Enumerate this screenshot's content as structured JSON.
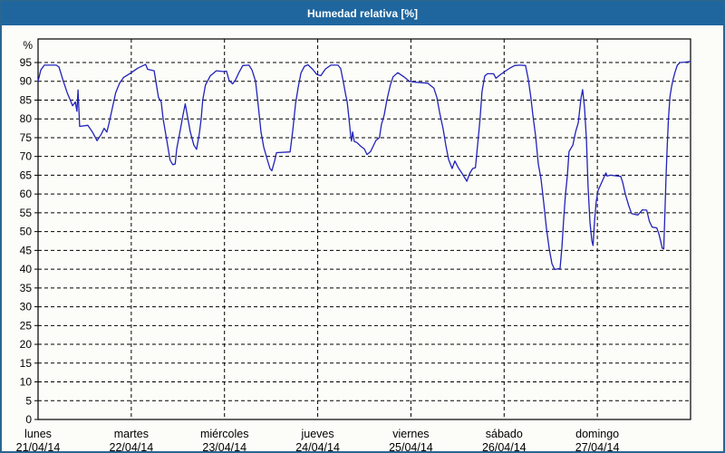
{
  "window": {
    "title": "Humedad relativa [%]"
  },
  "colors": {
    "titlebar_bg": "#1f669e",
    "titlebar_text": "#ffffff",
    "window_border": "#2a6691",
    "page_bg": "#fcfdf8",
    "grid": "#000000",
    "axis": "#000000",
    "series_line": "#2222bb",
    "label_text": "#000000"
  },
  "chart_data": {
    "type": "line",
    "title": "Humedad relativa [%]",
    "ylabel": "%",
    "ylim": [
      0,
      101
    ],
    "yticks": [
      0,
      5,
      10,
      15,
      20,
      25,
      30,
      35,
      40,
      45,
      50,
      55,
      60,
      65,
      70,
      75,
      80,
      85,
      90,
      95
    ],
    "grid": {
      "horizontal": "dashed",
      "vertical_at_day_starts": "dashed"
    },
    "x_range_hours": [
      0,
      168
    ],
    "x_categories": [
      {
        "name": "lunes",
        "date": "21/04/14"
      },
      {
        "name": "martes",
        "date": "22/04/14"
      },
      {
        "name": "miércoles",
        "date": "23/04/14"
      },
      {
        "name": "jueves",
        "date": "24/04/14"
      },
      {
        "name": "viernes",
        "date": "25/04/14"
      },
      {
        "name": "sábado",
        "date": "26/04/14"
      },
      {
        "name": "domingo",
        "date": "27/04/14"
      }
    ],
    "series": [
      {
        "name": "Humedad relativa [%]",
        "unit": "%",
        "points": [
          [
            0,
            90
          ],
          [
            0.7,
            93
          ],
          [
            1.6,
            94.3
          ],
          [
            4.7,
            94.3
          ],
          [
            5.4,
            93.8
          ],
          [
            6.5,
            90
          ],
          [
            7.5,
            87
          ],
          [
            8.9,
            83.5
          ],
          [
            9.6,
            84.5
          ],
          [
            10,
            82
          ],
          [
            10.3,
            87.7
          ],
          [
            10.7,
            78
          ],
          [
            12.8,
            78.3
          ],
          [
            14,
            76.5
          ],
          [
            15.2,
            74.2
          ],
          [
            16.3,
            76
          ],
          [
            17,
            77.5
          ],
          [
            17.7,
            76.5
          ],
          [
            18.2,
            78.5
          ],
          [
            19.1,
            82.8
          ],
          [
            20,
            87
          ],
          [
            21,
            89.5
          ],
          [
            22,
            91
          ],
          [
            24,
            92.3
          ],
          [
            25.7,
            93.5
          ],
          [
            27.7,
            94.5
          ],
          [
            28.2,
            93.2
          ],
          [
            29.9,
            92.8
          ],
          [
            31,
            85.7
          ],
          [
            31.7,
            84.5
          ],
          [
            32.2,
            80
          ],
          [
            33.1,
            74.5
          ],
          [
            34,
            69
          ],
          [
            34.7,
            67.8
          ],
          [
            35.3,
            68
          ],
          [
            35.7,
            72
          ],
          [
            36.6,
            77
          ],
          [
            37.3,
            81
          ],
          [
            37.9,
            84
          ],
          [
            38.5,
            80.5
          ],
          [
            39.2,
            76.5
          ],
          [
            40.1,
            73
          ],
          [
            40.8,
            71.9
          ],
          [
            41.5,
            76
          ],
          [
            42,
            80
          ],
          [
            42.4,
            85
          ],
          [
            43.1,
            89
          ],
          [
            44.3,
            91.4
          ],
          [
            45.9,
            92.8
          ],
          [
            47.8,
            92.6
          ],
          [
            48.5,
            92.7
          ],
          [
            49.2,
            90.2
          ],
          [
            50.1,
            89.3
          ],
          [
            50.9,
            90.5
          ],
          [
            51.8,
            92.5
          ],
          [
            52.7,
            94.2
          ],
          [
            54.3,
            94.3
          ],
          [
            55.1,
            93
          ],
          [
            56,
            90
          ],
          [
            56.7,
            83.5
          ],
          [
            57.4,
            76.5
          ],
          [
            58.1,
            72.5
          ],
          [
            59,
            69.2
          ],
          [
            59.7,
            66.8
          ],
          [
            60.2,
            66.2
          ],
          [
            60.9,
            68.8
          ],
          [
            61.4,
            71
          ],
          [
            64.9,
            71.2
          ],
          [
            65.6,
            77
          ],
          [
            66.3,
            84
          ],
          [
            67,
            88.5
          ],
          [
            67.7,
            92.2
          ],
          [
            68.6,
            94
          ],
          [
            69.5,
            94.4
          ],
          [
            70.7,
            93.2
          ],
          [
            71.8,
            91.8
          ],
          [
            72.8,
            91.5
          ],
          [
            74,
            93.3
          ],
          [
            75.4,
            94.3
          ],
          [
            77.2,
            94.3
          ],
          [
            77.9,
            93.4
          ],
          [
            78.6,
            89.8
          ],
          [
            79.1,
            87
          ],
          [
            79.6,
            84.5
          ],
          [
            80,
            80.5
          ],
          [
            80.5,
            75.5
          ],
          [
            80.7,
            74.1
          ],
          [
            81,
            76.5
          ],
          [
            81.4,
            74
          ],
          [
            82.1,
            73.7
          ],
          [
            83,
            72.8
          ],
          [
            84,
            72
          ],
          [
            84.7,
            70.5
          ],
          [
            85.6,
            71.3
          ],
          [
            86.3,
            72.8
          ],
          [
            87,
            74.3
          ],
          [
            87.9,
            75
          ],
          [
            88.4,
            78.5
          ],
          [
            89.1,
            81
          ],
          [
            89.8,
            85
          ],
          [
            90.7,
            89
          ],
          [
            91.4,
            91.2
          ],
          [
            92.6,
            92.3
          ],
          [
            94.2,
            91.2
          ],
          [
            95.6,
            90
          ],
          [
            96.8,
            89.8
          ],
          [
            100.3,
            89.5
          ],
          [
            101.9,
            88.2
          ],
          [
            102.7,
            85.7
          ],
          [
            103.4,
            81.7
          ],
          [
            104.3,
            77.3
          ],
          [
            105,
            72.9
          ],
          [
            105.7,
            69.2
          ],
          [
            106.6,
            66.8
          ],
          [
            107.3,
            68.8
          ],
          [
            108.2,
            67
          ],
          [
            109.1,
            65.6
          ],
          [
            110.1,
            63.9
          ],
          [
            110.4,
            63.4
          ],
          [
            111.2,
            65.6
          ],
          [
            111.9,
            66.8
          ],
          [
            112.6,
            67
          ],
          [
            113.3,
            74.5
          ],
          [
            113.8,
            80
          ],
          [
            114.3,
            87.3
          ],
          [
            115,
            91.4
          ],
          [
            115.7,
            92
          ],
          [
            117.3,
            92
          ],
          [
            117.9,
            90.8
          ],
          [
            118.7,
            91.5
          ],
          [
            119.6,
            92.2
          ],
          [
            121.3,
            93.4
          ],
          [
            122.7,
            94.2
          ],
          [
            124.1,
            94.3
          ],
          [
            125.5,
            94.2
          ],
          [
            126.2,
            90.6
          ],
          [
            126.9,
            85.5
          ],
          [
            127.4,
            81
          ],
          [
            128.1,
            75.5
          ],
          [
            128.8,
            68
          ],
          [
            129.5,
            64
          ],
          [
            130.2,
            57.6
          ],
          [
            130.9,
            50.8
          ],
          [
            131.6,
            45.5
          ],
          [
            132.3,
            41.5
          ],
          [
            133,
            39.9
          ],
          [
            134.4,
            40.2
          ],
          [
            134.9,
            46
          ],
          [
            135.3,
            53
          ],
          [
            135.8,
            60
          ],
          [
            136.3,
            65
          ],
          [
            136.7,
            71.3
          ],
          [
            137.7,
            73
          ],
          [
            138.4,
            76.5
          ],
          [
            139.1,
            79
          ],
          [
            139.8,
            85.5
          ],
          [
            140.2,
            87.8
          ],
          [
            140.7,
            83
          ],
          [
            141.2,
            74.5
          ],
          [
            141.6,
            62
          ],
          [
            142.1,
            52.5
          ],
          [
            142.6,
            47.5
          ],
          [
            142.9,
            46.3
          ],
          [
            143.3,
            53
          ],
          [
            143.7,
            58
          ],
          [
            144.2,
            61
          ],
          [
            145.3,
            63.5
          ],
          [
            146.2,
            65.6
          ],
          [
            146.5,
            64.8
          ],
          [
            147.4,
            65
          ],
          [
            150,
            64.7
          ],
          [
            150.5,
            63.2
          ],
          [
            151.2,
            60
          ],
          [
            152.1,
            56.8
          ],
          [
            152.8,
            54.8
          ],
          [
            154.4,
            54.4
          ],
          [
            155.1,
            55.2
          ],
          [
            155.6,
            55.8
          ],
          [
            156.7,
            55.7
          ],
          [
            157.4,
            52.7
          ],
          [
            158.1,
            51.2
          ],
          [
            159.3,
            51
          ],
          [
            159.8,
            49.5
          ],
          [
            160.2,
            47.9
          ],
          [
            160.7,
            45.6
          ],
          [
            161.1,
            45.4
          ],
          [
            161.4,
            55
          ],
          [
            161.7,
            65
          ],
          [
            162,
            73
          ],
          [
            162.3,
            80
          ],
          [
            162.7,
            86
          ],
          [
            163.1,
            88.5
          ],
          [
            163.5,
            90.5
          ],
          [
            164,
            92.5
          ],
          [
            164.6,
            94.3
          ],
          [
            165.3,
            95
          ],
          [
            166.5,
            95.1
          ],
          [
            168,
            95.3
          ]
        ]
      }
    ]
  }
}
